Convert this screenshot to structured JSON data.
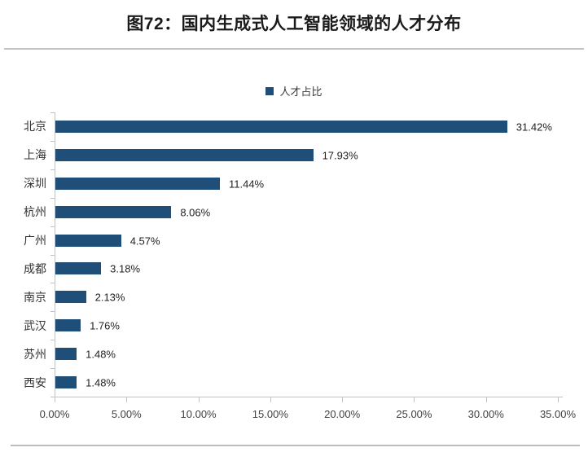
{
  "chart_data": {
    "type": "bar",
    "orientation": "horizontal",
    "title": "图72：国内生成式人工智能领域的人才分布",
    "legend": "人才占比",
    "categories": [
      "北京",
      "上海",
      "深圳",
      "杭州",
      "广州",
      "成都",
      "南京",
      "武汉",
      "苏州",
      "西安"
    ],
    "values": [
      31.42,
      17.93,
      11.44,
      8.06,
      4.57,
      3.18,
      2.13,
      1.76,
      1.48,
      1.48
    ],
    "value_labels": [
      "31.42%",
      "17.93%",
      "11.44%",
      "8.06%",
      "4.57%",
      "3.18%",
      "2.13%",
      "1.76%",
      "1.48%",
      "1.48%"
    ],
    "x_ticks": [
      "0.00%",
      "5.00%",
      "10.00%",
      "15.00%",
      "20.00%",
      "25.00%",
      "30.00%",
      "35.00%"
    ],
    "x_tick_values": [
      0,
      5,
      10,
      15,
      20,
      25,
      30,
      35
    ],
    "xlim": [
      0,
      35
    ],
    "grid": false,
    "legend_position": "top-center",
    "colors": {
      "bar": "#1F4E79",
      "axis": "#bfc3c7",
      "title_text": "#1a1a1a",
      "label_text": "#333333",
      "divider": "#c3c3c3"
    }
  }
}
